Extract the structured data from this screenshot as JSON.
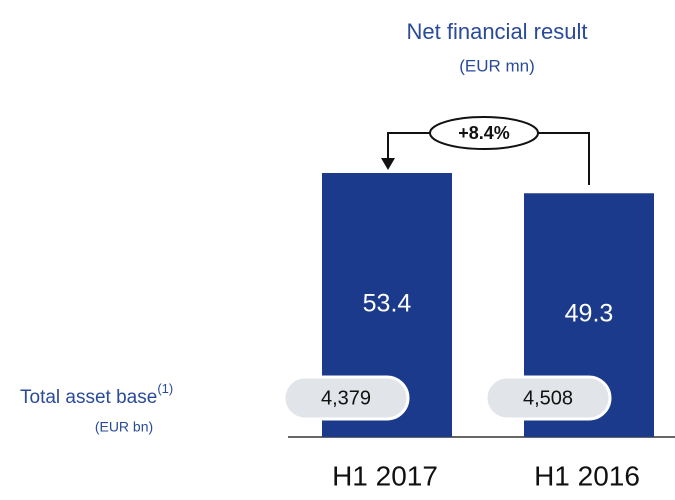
{
  "chart_data": {
    "type": "bar",
    "title": "Net financial result",
    "subtitle": "(EUR mn)",
    "categories": [
      "H1 2017",
      "H1 2016"
    ],
    "values": [
      53.4,
      49.3
    ],
    "color": "#1b3a8c",
    "annotation": "+8.4%",
    "asset_base": {
      "label": "Total asset base",
      "superscript": "(1)",
      "unit": "(EUR bn)",
      "values": [
        4379,
        4508
      ],
      "value_labels": [
        "4,379",
        "4,508"
      ]
    }
  }
}
